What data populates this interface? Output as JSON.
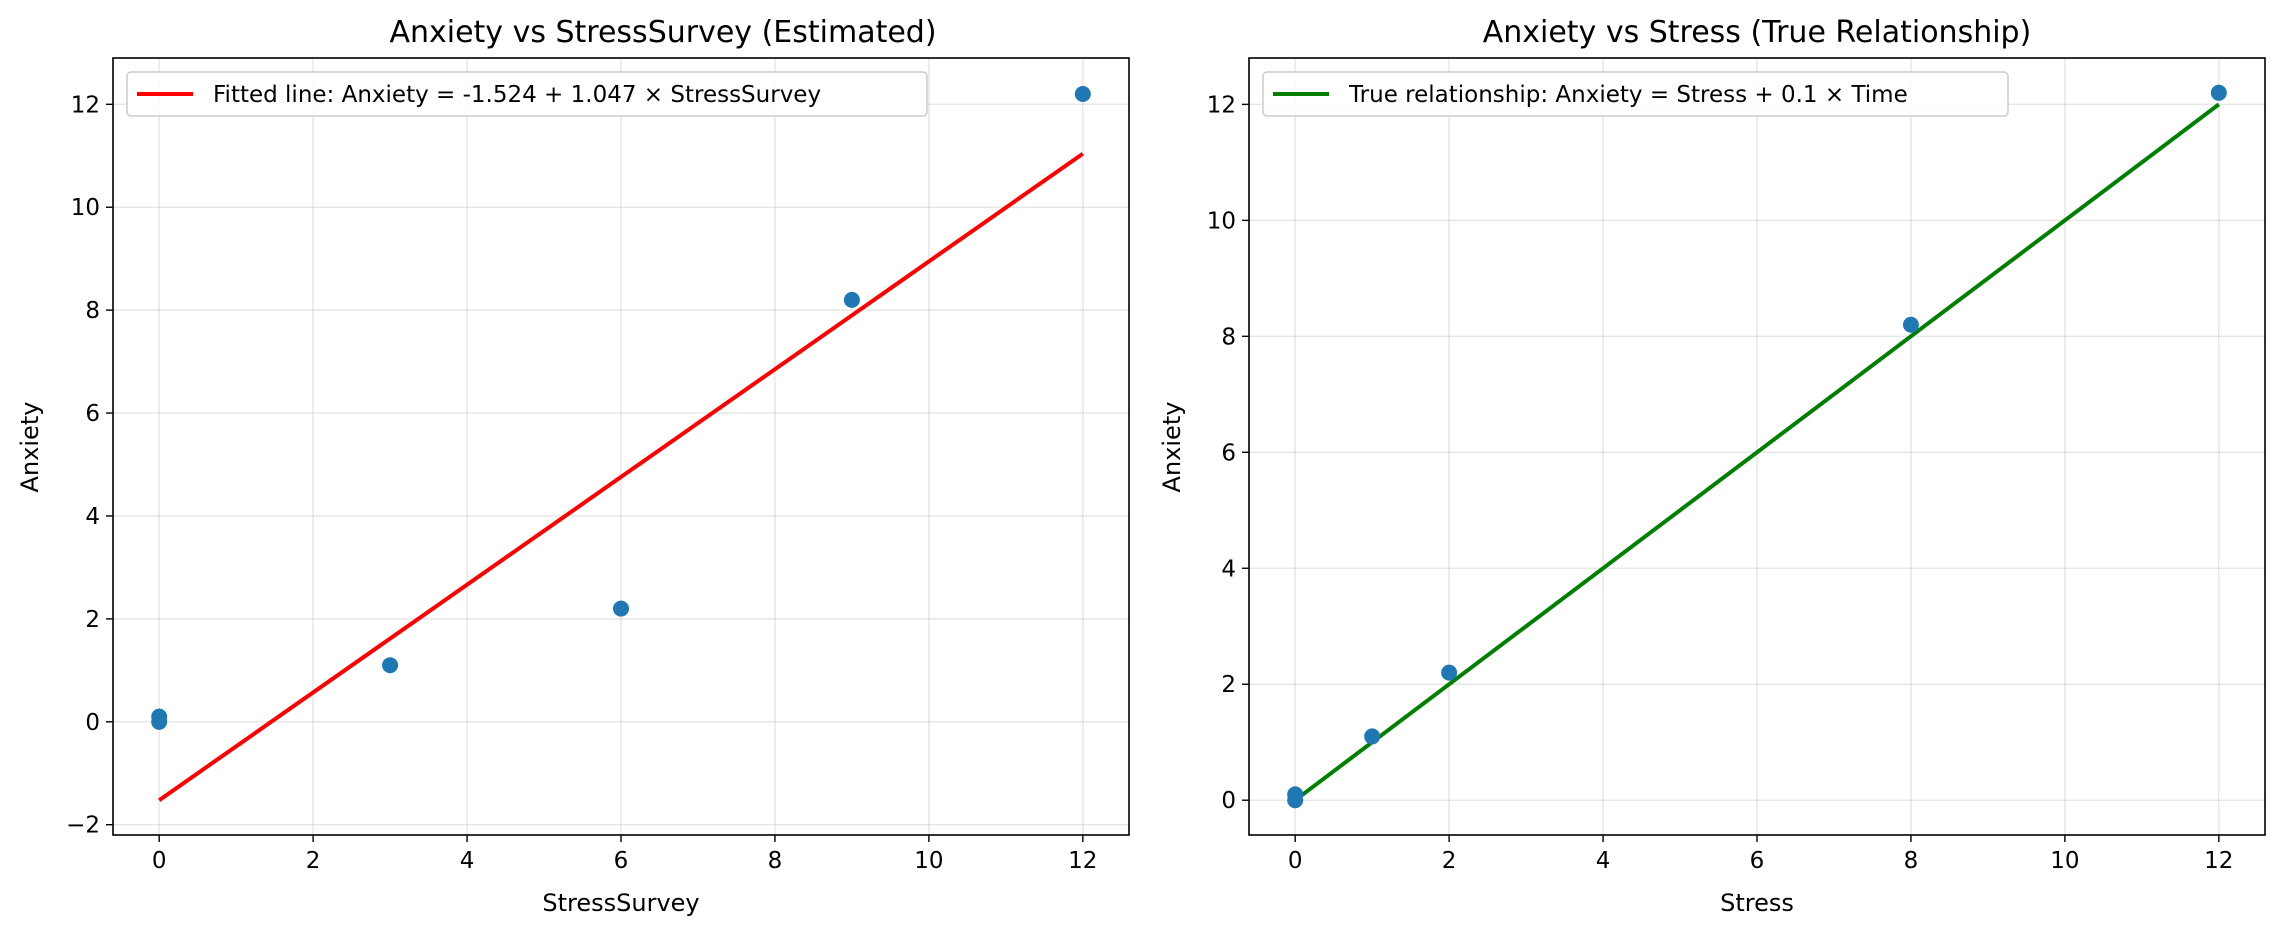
{
  "chart_data": [
    {
      "type": "scatter",
      "title": "Anxiety vs StressSurvey (Estimated)",
      "xlabel": "StressSurvey",
      "ylabel": "Anxiety",
      "xlim": [
        -0.6,
        12.6
      ],
      "ylim": [
        -2.2,
        12.9
      ],
      "xticks": [
        0,
        2,
        4,
        6,
        8,
        10,
        12
      ],
      "yticks": [
        -2,
        0,
        2,
        4,
        6,
        8,
        10,
        12
      ],
      "ytick_labels": [
        "−2",
        "0",
        "2",
        "4",
        "6",
        "8",
        "10",
        "12"
      ],
      "grid": true,
      "legend_position": "top-left",
      "points": {
        "color": "#1f77b4",
        "x": [
          0,
          0,
          3,
          6,
          9,
          12
        ],
        "y": [
          0.1,
          0.0,
          1.1,
          2.2,
          8.2,
          12.2
        ]
      },
      "line": {
        "label": "Fitted line: Anxiety = -1.524 + 1.047 × StressSurvey",
        "color": "#ff0000",
        "x": [
          0,
          12
        ],
        "y": [
          -1.524,
          11.04
        ]
      }
    },
    {
      "type": "scatter",
      "title": "Anxiety vs Stress (True Relationship)",
      "xlabel": "Stress",
      "ylabel": "Anxiety",
      "xlim": [
        -0.6,
        12.6
      ],
      "ylim": [
        -0.6,
        12.8
      ],
      "xticks": [
        0,
        2,
        4,
        6,
        8,
        10,
        12
      ],
      "yticks": [
        0,
        2,
        4,
        6,
        8,
        10,
        12
      ],
      "ytick_labels": [
        "0",
        "2",
        "4",
        "6",
        "8",
        "10",
        "12"
      ],
      "grid": true,
      "legend_position": "top-left",
      "points": {
        "color": "#1f77b4",
        "x": [
          0,
          0,
          1,
          2,
          8,
          12
        ],
        "y": [
          0.1,
          0.0,
          1.1,
          2.2,
          8.2,
          12.2
        ]
      },
      "line": {
        "label": "True relationship: Anxiety = Stress + 0.1 × Time",
        "color": "#008000",
        "x": [
          0,
          12
        ],
        "y": [
          0,
          12
        ]
      }
    }
  ]
}
